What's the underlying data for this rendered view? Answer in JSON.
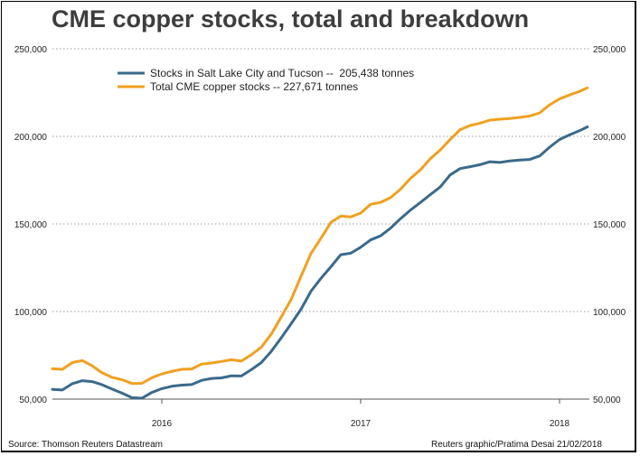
{
  "chart_data": {
    "type": "line",
    "title": "CME copper stocks, total and breakdown",
    "xlabel": "",
    "ylabel": "",
    "x_tick_labels": [
      "2016",
      "2017",
      "2018"
    ],
    "y_tick_labels": [
      "250,000",
      "200,000",
      "150,000",
      "100,000",
      "50,000"
    ],
    "ylim": [
      50000,
      250000
    ],
    "xlim": [
      2015.45,
      2018.15
    ],
    "x_ticks": [
      2016.0,
      2017.0,
      2018.0
    ],
    "y_ticks": [
      250000,
      200000,
      150000,
      100000,
      50000
    ],
    "grid": true,
    "legend_position": "top-left",
    "series": [
      {
        "name": "Stocks in Salt Lake City and Tucson --  205,438 tonnes",
        "color": "#3a6a8c",
        "x": [
          2015.45,
          2015.5,
          2015.55,
          2015.6,
          2015.65,
          2015.7,
          2015.75,
          2015.8,
          2015.85,
          2015.9,
          2015.95,
          2016.0,
          2016.05,
          2016.1,
          2016.15,
          2016.2,
          2016.25,
          2016.3,
          2016.35,
          2016.4,
          2016.45,
          2016.5,
          2016.55,
          2016.6,
          2016.65,
          2016.7,
          2016.75,
          2016.8,
          2016.85,
          2016.9,
          2016.95,
          2017.0,
          2017.05,
          2017.1,
          2017.15,
          2017.2,
          2017.25,
          2017.3,
          2017.35,
          2017.4,
          2017.45,
          2017.5,
          2017.55,
          2017.6,
          2017.65,
          2017.7,
          2017.75,
          2017.8,
          2017.85,
          2017.9,
          2017.95,
          2018.0,
          2018.05,
          2018.1,
          2018.14
        ],
        "values": [
          55500,
          55200,
          58800,
          60500,
          60000,
          58200,
          55700,
          53400,
          50800,
          50500,
          53800,
          56000,
          57300,
          58000,
          58300,
          60700,
          61800,
          62100,
          63300,
          63200,
          66800,
          70800,
          77200,
          84900,
          93000,
          101300,
          111600,
          118900,
          125500,
          132400,
          133300,
          136700,
          140900,
          143200,
          147600,
          153000,
          157900,
          162200,
          166700,
          171100,
          178000,
          181600,
          182700,
          183800,
          185500,
          185100,
          186000,
          186500,
          186800,
          188800,
          193800,
          198200,
          200800,
          203200,
          205438
        ]
      },
      {
        "name": "Total CME copper stocks -- 227,671 tonnes",
        "color": "#f0a020",
        "x": [
          2015.45,
          2015.5,
          2015.55,
          2015.6,
          2015.65,
          2015.7,
          2015.75,
          2015.8,
          2015.85,
          2015.9,
          2015.95,
          2016.0,
          2016.05,
          2016.1,
          2016.15,
          2016.2,
          2016.25,
          2016.3,
          2016.35,
          2016.4,
          2016.45,
          2016.5,
          2016.55,
          2016.6,
          2016.65,
          2016.7,
          2016.75,
          2016.8,
          2016.85,
          2016.9,
          2016.95,
          2017.0,
          2017.05,
          2017.1,
          2017.15,
          2017.2,
          2017.25,
          2017.3,
          2017.35,
          2017.4,
          2017.45,
          2017.5,
          2017.55,
          2017.6,
          2017.65,
          2017.7,
          2017.75,
          2017.8,
          2017.85,
          2017.9,
          2017.95,
          2018.0,
          2018.05,
          2018.1,
          2018.14
        ],
        "values": [
          67300,
          67000,
          70900,
          72000,
          69000,
          65000,
          62400,
          61100,
          58900,
          59000,
          62200,
          64400,
          65800,
          67000,
          67200,
          70000,
          70600,
          71500,
          72500,
          71700,
          75300,
          79600,
          87000,
          96800,
          106800,
          120100,
          133100,
          141800,
          150800,
          154500,
          154000,
          156200,
          161200,
          162300,
          165000,
          169800,
          176000,
          180800,
          187200,
          192200,
          198200,
          203800,
          206200,
          207500,
          209300,
          209800,
          210200,
          210800,
          211600,
          213400,
          218000,
          221400,
          223600,
          225600,
          227671
        ]
      }
    ]
  },
  "source": "Source: Thomson Reuters Datastream",
  "credit": "Reuters graphic/Pratima Desai 21/02/2018"
}
